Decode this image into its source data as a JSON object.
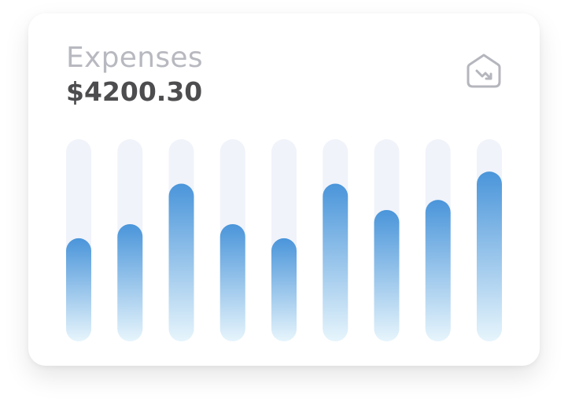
{
  "card": {
    "title": "Expenses",
    "amount": "$4200.30"
  },
  "icon": {
    "name": "trending-down-icon"
  },
  "colors": {
    "track": "#f0f3fa",
    "bar_top": "#4a95da",
    "bar_bottom": "#e7f5fc",
    "title": "#b8b9c0",
    "amount": "#4d4d4f",
    "icon_stroke": "#b5b6bd"
  },
  "chart_data": {
    "type": "bar",
    "title": "",
    "xlabel": "",
    "ylabel": "",
    "ylim": [
      0,
      100
    ],
    "grid": false,
    "categories": [
      "",
      "",
      "",
      "",
      "",
      "",
      "",
      "",
      ""
    ],
    "series": [
      {
        "values": [
          51,
          58,
          78,
          58,
          51,
          78,
          65,
          70,
          84
        ]
      }
    ]
  }
}
